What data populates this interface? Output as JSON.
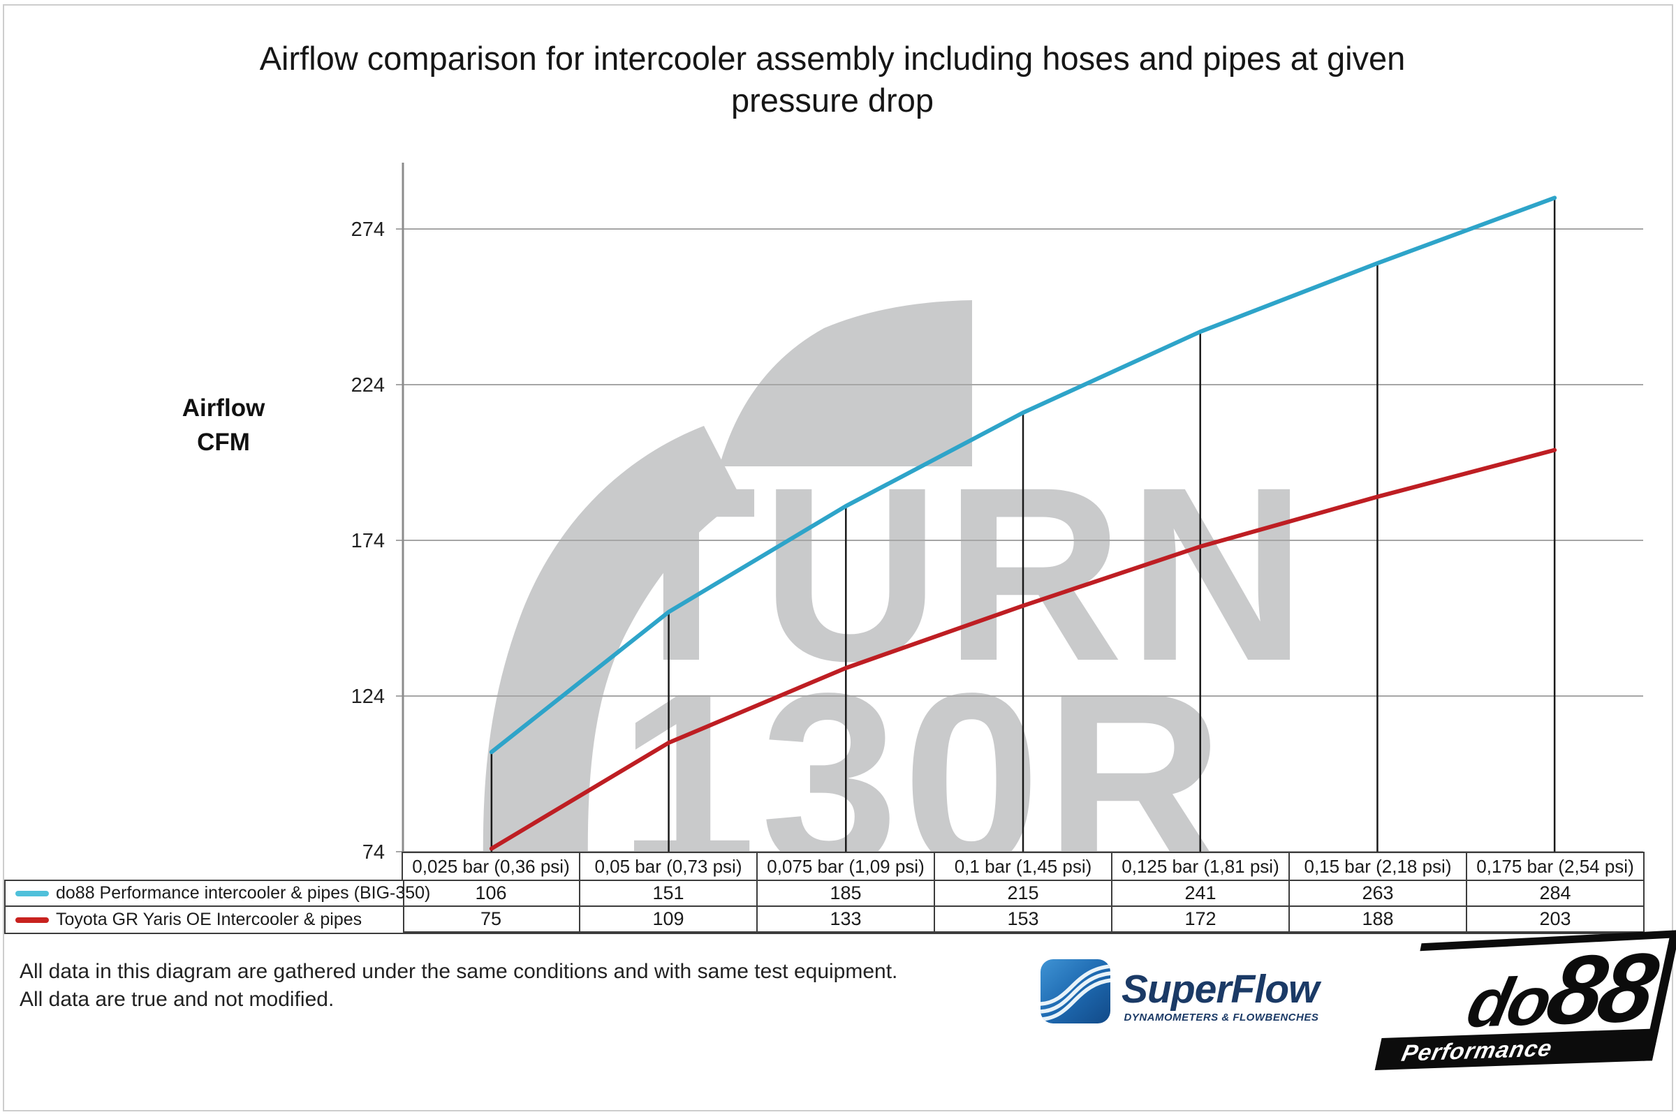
{
  "title": "Airflow comparison for intercooler assembly including hoses and pipes at given pressure drop",
  "y_axis": {
    "line1": "Airflow",
    "line2": "CFM"
  },
  "watermark": {
    "line1": "TURN",
    "line2": "130R"
  },
  "footer": {
    "line1": "All data in this diagram are gathered under the same conditions and with same test equipment.",
    "line2": "All data are true and not modified."
  },
  "logos": {
    "superflow": {
      "name": "SuperFlow",
      "tagline": "DYNAMOMETERS & FLOWBENCHES"
    },
    "do88": {
      "name_do": "do",
      "name_88": "88",
      "tagline": "Performance"
    }
  },
  "colors": {
    "gridline": "#A6A6A6",
    "axis": "#8C8C8C",
    "dropline": "#1A1A1A",
    "watermark": "#C9CACB",
    "table_border": "#3D3D3D",
    "superflow_navy": "#1B3A66",
    "do88_black": "#0C0C0C"
  },
  "chart_data": {
    "type": "line",
    "title": "Airflow comparison for intercooler assembly including hoses and pipes at given pressure drop",
    "xlabel": "pressure drop",
    "ylabel": "Airflow CFM",
    "categories": [
      "0,025 bar (0,36 psi)",
      "0,05 bar (0,73 psi)",
      "0,075 bar (1,09 psi)",
      "0,1 bar (1,45 psi)",
      "0,125 bar (1,81 psi)",
      "0,15 bar (2,18 psi)",
      "0,175 bar (2,54 psi)"
    ],
    "series": [
      {
        "name": "do88 Performance intercooler & pipes (BIG-350)",
        "color": "#2EA4C9",
        "legend_color": "#4FC0DA",
        "values": [
          106,
          151,
          185,
          215,
          241,
          263,
          284
        ]
      },
      {
        "name": "Toyota GR Yaris OE Intercooler & pipes",
        "color": "#BE1E23",
        "legend_color": "#C8221F",
        "values": [
          75,
          109,
          133,
          153,
          172,
          188,
          203
        ]
      }
    ],
    "yticks": [
      74,
      124,
      174,
      224,
      274
    ],
    "ylim": [
      74,
      295
    ],
    "grid": "horizontal",
    "legend_position": "bottom-left table"
  }
}
